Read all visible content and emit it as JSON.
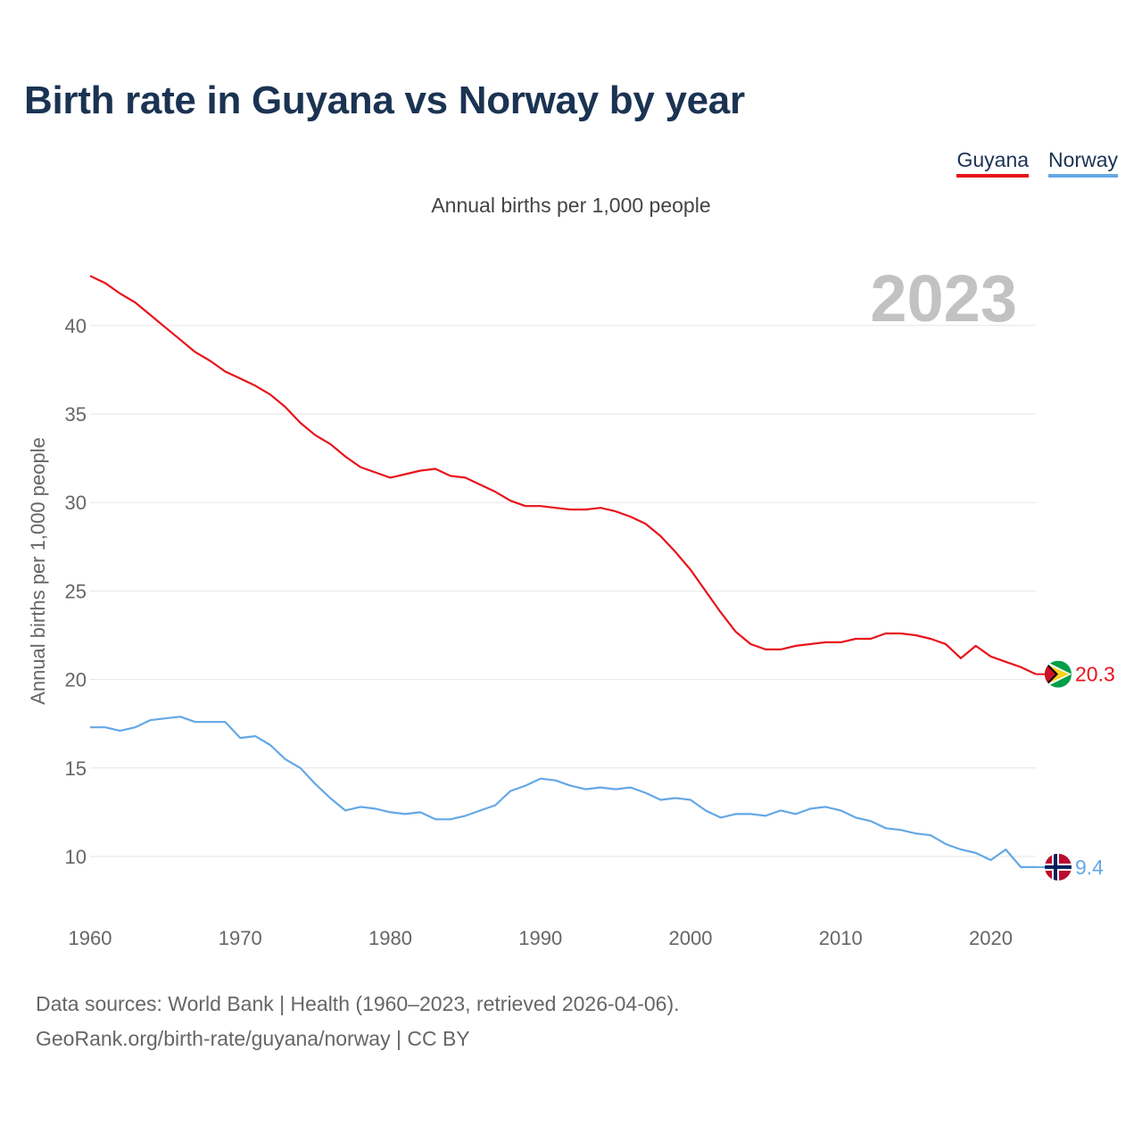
{
  "title": "Birth rate in Guyana vs Norway by year",
  "subtitle": "Annual births per 1,000 people",
  "legend": [
    {
      "name": "Guyana",
      "color": "#e8131b"
    },
    {
      "name": "Norway",
      "color": "#64a8e5"
    }
  ],
  "source_line1": "Data sources: World Bank | Health (1960–2023, retrieved 2026-04-06).",
  "source_line2": "GeoRank.org/birth-rate/guyana/norway | CC BY",
  "chart_data": {
    "type": "line",
    "title": "Birth rate in Guyana vs Norway by year",
    "subtitle": "Annual births per 1,000 people",
    "xlabel": "",
    "ylabel": "Annual births per 1,000 people",
    "year_label": "2023",
    "xlim": [
      1960,
      2025
    ],
    "ylim": [
      7,
      44
    ],
    "x_ticks": [
      "1960",
      "1970",
      "1980",
      "1990",
      "2000",
      "2010",
      "2020"
    ],
    "y_ticks": [
      "10",
      "15",
      "20",
      "25",
      "30",
      "35",
      "40"
    ],
    "grid": true,
    "legend_position": "top-right",
    "x": [
      1960,
      1961,
      1962,
      1963,
      1964,
      1965,
      1966,
      1967,
      1968,
      1969,
      1970,
      1971,
      1972,
      1973,
      1974,
      1975,
      1976,
      1977,
      1978,
      1979,
      1980,
      1981,
      1982,
      1983,
      1984,
      1985,
      1986,
      1987,
      1988,
      1989,
      1990,
      1991,
      1992,
      1993,
      1994,
      1995,
      1996,
      1997,
      1998,
      1999,
      2000,
      2001,
      2002,
      2003,
      2004,
      2005,
      2006,
      2007,
      2008,
      2009,
      2010,
      2011,
      2012,
      2013,
      2014,
      2015,
      2016,
      2017,
      2018,
      2019,
      2020,
      2021,
      2022,
      2023
    ],
    "series": [
      {
        "name": "Guyana",
        "color": "#e8131b",
        "end_label": "20.3",
        "values": [
          42.8,
          42.4,
          41.8,
          41.3,
          40.6,
          39.9,
          39.2,
          38.5,
          38.0,
          37.4,
          37.0,
          36.6,
          36.1,
          35.4,
          34.5,
          33.8,
          33.3,
          32.6,
          32.0,
          31.7,
          31.4,
          31.6,
          31.8,
          31.9,
          31.5,
          31.4,
          31.0,
          30.6,
          30.1,
          29.8,
          29.8,
          29.7,
          29.6,
          29.6,
          29.7,
          29.5,
          29.2,
          28.8,
          28.1,
          27.2,
          26.2,
          25.0,
          23.8,
          22.7,
          22.0,
          21.7,
          21.7,
          21.9,
          22.0,
          22.1,
          22.1,
          22.3,
          22.3,
          22.6,
          22.6,
          22.5,
          22.3,
          22.0,
          21.2,
          21.9,
          21.3,
          21.0,
          20.7,
          20.3
        ]
      },
      {
        "name": "Norway",
        "color": "#64a8e5",
        "end_label": "9.4",
        "values": [
          17.3,
          17.3,
          17.1,
          17.3,
          17.7,
          17.8,
          17.9,
          17.6,
          17.6,
          17.6,
          16.7,
          16.8,
          16.3,
          15.5,
          15.0,
          14.1,
          13.3,
          12.6,
          12.8,
          12.7,
          12.5,
          12.4,
          12.5,
          12.1,
          12.1,
          12.3,
          12.6,
          12.9,
          13.7,
          14.0,
          14.4,
          14.3,
          14.0,
          13.8,
          13.9,
          13.8,
          13.9,
          13.6,
          13.2,
          13.3,
          13.2,
          12.6,
          12.2,
          12.4,
          12.4,
          12.3,
          12.6,
          12.4,
          12.7,
          12.8,
          12.6,
          12.2,
          12.0,
          11.6,
          11.5,
          11.3,
          11.2,
          10.7,
          10.4,
          10.2,
          9.8,
          10.4,
          9.4,
          9.4
        ]
      }
    ]
  }
}
